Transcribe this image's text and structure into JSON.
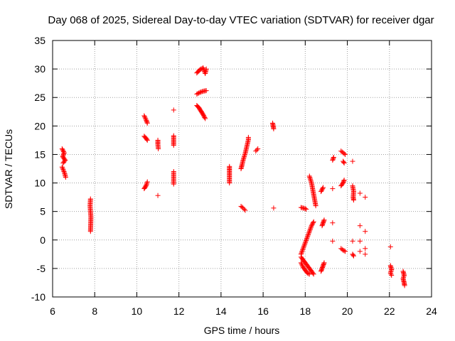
{
  "chart_data": {
    "type": "scatter",
    "title": "Day 068 of 2025, Sidereal Day-to-day VTEC variation (SDTVAR) for receiver dgar",
    "xlabel": "GPS time / hours",
    "ylabel": "SDTVAR / TECUs",
    "xlim": [
      6,
      24
    ],
    "ylim": [
      -10,
      35
    ],
    "xticks": [
      "6",
      "8",
      "10",
      "12",
      "14",
      "16",
      "18",
      "20",
      "22",
      "24"
    ],
    "yticks": [
      "-10",
      "-5",
      "0",
      "5",
      "10",
      "15",
      "20",
      "25",
      "30",
      "35"
    ],
    "grid": true,
    "marker": "+",
    "marker_color": "#ff0000",
    "series": [
      {
        "name": "SDTVAR",
        "segments": [
          [
            [
              6.45,
              16.0
            ],
            [
              6.55,
              15.3
            ],
            [
              6.48,
              14.6
            ],
            [
              6.6,
              14.0
            ],
            [
              6.5,
              13.5
            ]
          ],
          [
            [
              6.45,
              12.8
            ],
            [
              6.52,
              12.2
            ],
            [
              6.58,
              11.6
            ],
            [
              6.62,
              11.0
            ]
          ],
          [
            [
              7.8,
              7.2
            ],
            [
              7.78,
              6.0
            ],
            [
              7.8,
              5.0
            ],
            [
              7.82,
              4.0
            ],
            [
              7.8,
              1.5
            ]
          ],
          [
            [
              10.35,
              21.8
            ],
            [
              10.45,
              21.0
            ],
            [
              10.5,
              20.5
            ]
          ],
          [
            [
              10.35,
              18.2
            ],
            [
              10.45,
              17.8
            ],
            [
              10.5,
              17.5
            ]
          ],
          [
            [
              10.35,
              9.0
            ],
            [
              10.45,
              9.6
            ],
            [
              10.5,
              10.2
            ]
          ],
          [
            [
              11.0,
              17.5
            ],
            [
              11.0,
              16.8
            ],
            [
              11.02,
              16.0
            ]
          ],
          [
            [
              11.0,
              7.8
            ]
          ],
          [
            [
              11.75,
              22.8
            ]
          ],
          [
            [
              11.75,
              18.3
            ],
            [
              11.75,
              16.6
            ]
          ],
          [
            [
              11.75,
              12.0
            ],
            [
              11.75,
              9.8
            ]
          ],
          [
            [
              12.85,
              29.3
            ],
            [
              13.0,
              29.9
            ],
            [
              13.15,
              30.2
            ],
            [
              13.25,
              29.2
            ],
            [
              13.3,
              30.0
            ]
          ],
          [
            [
              12.85,
              25.6
            ],
            [
              13.0,
              25.9
            ],
            [
              13.15,
              26.1
            ],
            [
              13.3,
              26.2
            ]
          ],
          [
            [
              12.85,
              23.6
            ],
            [
              12.95,
              23.2
            ],
            [
              13.05,
              22.6
            ],
            [
              13.15,
              22.0
            ],
            [
              13.25,
              21.3
            ]
          ],
          [
            [
              14.4,
              12.9
            ],
            [
              14.4,
              12.2
            ],
            [
              14.4,
              11.3
            ],
            [
              14.4,
              10.0
            ]
          ],
          [
            [
              14.95,
              12.5
            ],
            [
              15.0,
              13.2
            ],
            [
              15.05,
              14.0
            ],
            [
              15.1,
              14.6
            ],
            [
              15.15,
              15.2
            ],
            [
              15.2,
              16.0
            ],
            [
              15.25,
              16.8
            ],
            [
              15.3,
              17.6
            ],
            [
              15.3,
              18.0
            ]
          ],
          [
            [
              14.95,
              5.9
            ],
            [
              15.05,
              5.6
            ],
            [
              15.1,
              5.4
            ],
            [
              15.15,
              5.2
            ]
          ],
          [
            [
              15.65,
              15.6
            ],
            [
              15.7,
              15.8
            ],
            [
              15.75,
              16.0
            ]
          ],
          [
            [
              16.45,
              20.5
            ],
            [
              16.48,
              20.0
            ],
            [
              16.5,
              19.5
            ]
          ],
          [
            [
              16.5,
              5.6
            ]
          ],
          [
            [
              17.8,
              5.7
            ],
            [
              17.9,
              5.6
            ],
            [
              18.0,
              5.5
            ],
            [
              18.05,
              5.4
            ]
          ],
          [
            [
              18.2,
              11.2
            ],
            [
              18.3,
              10.0
            ],
            [
              18.35,
              9.0
            ],
            [
              18.4,
              8.0
            ],
            [
              18.45,
              7.0
            ],
            [
              18.5,
              6.0
            ]
          ],
          [
            [
              17.8,
              -2.5
            ],
            [
              17.9,
              -1.5
            ],
            [
              18.0,
              -0.5
            ],
            [
              18.1,
              0.5
            ],
            [
              18.2,
              1.5
            ],
            [
              18.3,
              2.5
            ],
            [
              18.4,
              3.2
            ]
          ],
          [
            [
              17.8,
              -3.0
            ],
            [
              17.9,
              -3.5
            ],
            [
              18.0,
              -4.0
            ],
            [
              18.1,
              -4.5
            ],
            [
              18.2,
              -5.0
            ],
            [
              18.3,
              -5.5
            ],
            [
              18.4,
              -6.0
            ]
          ],
          [
            [
              17.8,
              -4.0
            ],
            [
              17.9,
              -4.8
            ],
            [
              18.0,
              -5.3
            ],
            [
              18.1,
              -5.8
            ],
            [
              18.2,
              -6.0
            ]
          ],
          [
            [
              18.8,
              2.5
            ],
            [
              18.85,
              3.0
            ],
            [
              18.9,
              3.5
            ]
          ],
          [
            [
              18.75,
              8.5
            ],
            [
              18.85,
              9.2
            ]
          ],
          [
            [
              18.75,
              -5.5
            ],
            [
              18.8,
              -5.0
            ],
            [
              18.85,
              -4.5
            ],
            [
              18.9,
              -4.0
            ]
          ],
          [
            [
              19.3,
              14.0
            ],
            [
              19.35,
              14.5
            ]
          ],
          [
            [
              19.3,
              9.0
            ]
          ],
          [
            [
              19.3,
              3.0
            ]
          ],
          [
            [
              19.3,
              -0.2
            ]
          ],
          [
            [
              19.7,
              15.6
            ],
            [
              19.8,
              15.3
            ],
            [
              19.9,
              15.0
            ]
          ],
          [
            [
              19.8,
              13.8
            ],
            [
              19.85,
              13.5
            ]
          ],
          [
            [
              19.7,
              9.5
            ],
            [
              19.8,
              10.0
            ],
            [
              19.85,
              10.5
            ]
          ],
          [
            [
              19.7,
              -1.5
            ],
            [
              19.8,
              -1.8
            ],
            [
              19.9,
              -2.0
            ]
          ],
          [
            [
              20.25,
              13.8
            ]
          ],
          [
            [
              20.25,
              9.5
            ],
            [
              20.3,
              8.5
            ],
            [
              20.28,
              7.5
            ],
            [
              20.3,
              7.0
            ]
          ],
          [
            [
              20.25,
              -0.2
            ]
          ],
          [
            [
              20.25,
              -2.5
            ],
            [
              20.3,
              -2.8
            ]
          ],
          [
            [
              20.6,
              8.2
            ]
          ],
          [
            [
              20.6,
              2.5
            ]
          ],
          [
            [
              20.6,
              -0.2
            ]
          ],
          [
            [
              20.6,
              -2.0
            ]
          ],
          [
            [
              20.85,
              7.5
            ]
          ],
          [
            [
              20.85,
              1.5
            ]
          ],
          [
            [
              20.85,
              -1.5
            ]
          ],
          [
            [
              20.85,
              -2.5
            ]
          ],
          [
            [
              22.05,
              -1.2
            ]
          ],
          [
            [
              22.05,
              -4.5
            ],
            [
              22.1,
              -5.2
            ],
            [
              22.05,
              -5.8
            ],
            [
              22.1,
              -6.2
            ]
          ],
          [
            [
              22.65,
              -5.5
            ],
            [
              22.7,
              -6.2
            ],
            [
              22.65,
              -6.8
            ],
            [
              22.7,
              -7.5
            ],
            [
              22.72,
              -8.0
            ]
          ]
        ]
      }
    ]
  }
}
